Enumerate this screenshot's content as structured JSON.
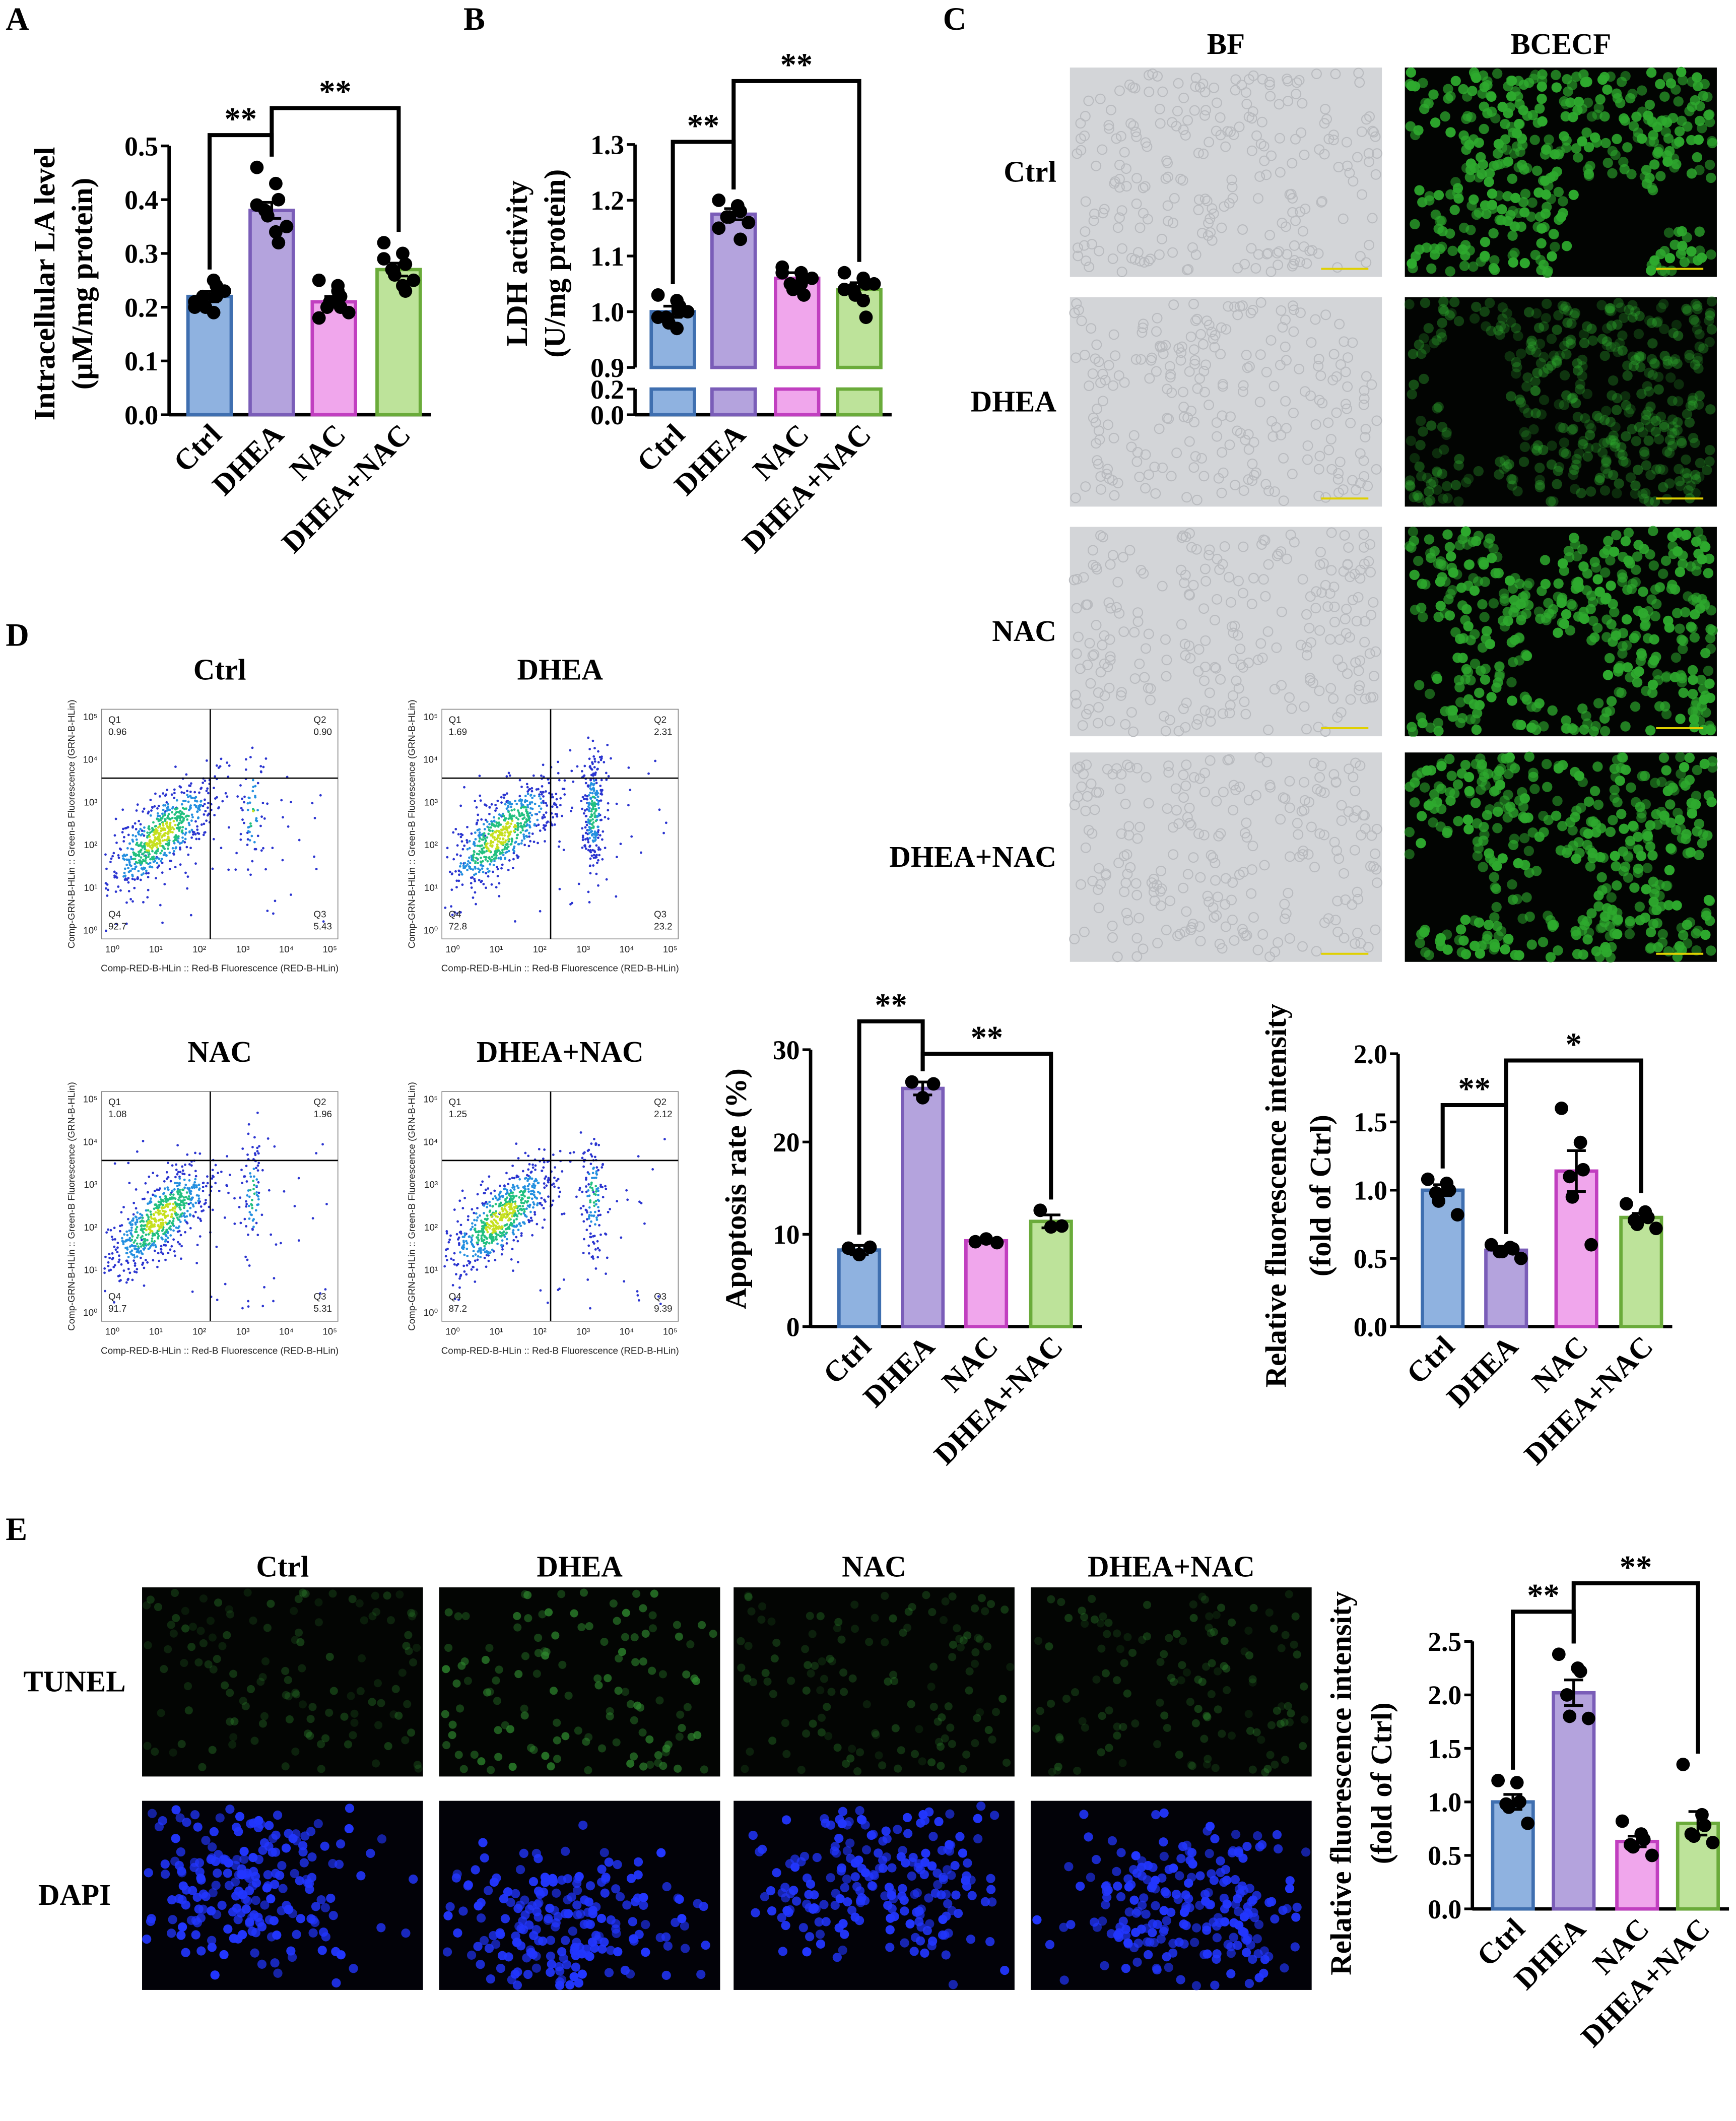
{
  "panels": [
    "A",
    "B",
    "C",
    "D",
    "E"
  ],
  "images": {
    "C": {
      "columns": [
        "BF",
        "BCECF"
      ],
      "rows": [
        "Ctrl",
        "DHEA",
        "NAC",
        "DHEA+NAC"
      ]
    },
    "E": {
      "columns": [
        "Ctrl",
        "DHEA",
        "NAC",
        "DHEA+NAC"
      ],
      "rows": [
        "TUNEL",
        "DAPI"
      ]
    }
  },
  "flow_axes": {
    "ticks": [
      "10⁰",
      "10¹",
      "10²",
      "10³",
      "10⁴",
      "10⁵"
    ],
    "xlabel": "Comp-RED-B-HLin :: Red-B Fluorescence (RED-B-HLin)",
    "ylabel": "Comp-GRN-B-HLin :: Green-B Fluorescence (GRN-B-HLin)"
  },
  "flow_plots": [
    {
      "title": "Ctrl",
      "quadrants": [
        {
          "name": "Q1",
          "value": "0.96"
        },
        {
          "name": "Q2",
          "value": "0.90"
        },
        {
          "name": "Q3",
          "value": "5.43"
        },
        {
          "name": "Q4",
          "value": "92.7"
        }
      ]
    },
    {
      "title": "DHEA",
      "quadrants": [
        {
          "name": "Q1",
          "value": "1.69"
        },
        {
          "name": "Q2",
          "value": "2.31"
        },
        {
          "name": "Q3",
          "value": "23.2"
        },
        {
          "name": "Q4",
          "value": "72.8"
        }
      ]
    },
    {
      "title": "NAC",
      "quadrants": [
        {
          "name": "Q1",
          "value": "1.08"
        },
        {
          "name": "Q2",
          "value": "1.96"
        },
        {
          "name": "Q3",
          "value": "5.31"
        },
        {
          "name": "Q4",
          "value": "91.7"
        }
      ]
    },
    {
      "title": "DHEA+NAC",
      "quadrants": [
        {
          "name": "Q1",
          "value": "1.25"
        },
        {
          "name": "Q2",
          "value": "2.12"
        },
        {
          "name": "Q3",
          "value": "9.39"
        },
        {
          "name": "Q4",
          "value": "87.2"
        }
      ]
    }
  ],
  "chart_data": [
    {
      "type": "bar",
      "ylabel": [
        "Intracellular LA level",
        "(μM/mg protein)"
      ],
      "categories": [
        "Ctrl",
        "DHEA",
        "NAC",
        "DHEA+NAC"
      ],
      "values": [
        0.22,
        0.38,
        0.21,
        0.27
      ],
      "errors": [
        0.01,
        0.015,
        0.01,
        0.012
      ],
      "points": [
        [
          0.2,
          0.25,
          0.24,
          0.22,
          0.2,
          0.23,
          0.21,
          0.19,
          0.22
        ],
        [
          0.46,
          0.43,
          0.4,
          0.38,
          0.37,
          0.35,
          0.39,
          0.34,
          0.32
        ],
        [
          0.25,
          0.23,
          0.22,
          0.2,
          0.21,
          0.19,
          0.18,
          0.24,
          0.2
        ],
        [
          0.32,
          0.3,
          0.28,
          0.27,
          0.26,
          0.25,
          0.29,
          0.24,
          0.23
        ]
      ],
      "colors": [
        "#8fb2e0",
        "#b4a3dd",
        "#f0a6ec",
        "#bde39a"
      ],
      "edge_colors": [
        "#3f6fb0",
        "#7a5db8",
        "#c13fc0",
        "#6aab3a"
      ],
      "ylim": [
        0,
        0.5
      ],
      "yticks": [
        {
          "value": 0,
          "label": "0.0"
        },
        0.1,
        0.2,
        0.3,
        0.4,
        0.5
      ],
      "annotations": [
        {
          "text": "**",
          "between": [
            "Ctrl",
            "DHEA"
          ]
        },
        {
          "text": "**",
          "between": [
            "DHEA",
            "DHEA+NAC"
          ]
        }
      ]
    },
    {
      "type": "bar",
      "ylabel": [
        "LDH  activity",
        "(U/mg protein)"
      ],
      "categories": [
        "Ctrl",
        "DHEA",
        "NAC",
        "DHEA+NAC"
      ],
      "values": [
        1.0,
        1.175,
        1.06,
        1.04
      ],
      "errors": [
        0.01,
        0.01,
        0.01,
        0.012
      ],
      "points": [
        [
          1.03,
          1.02,
          1.0,
          0.99,
          0.98,
          1.0,
          0.99,
          0.97,
          1.01
        ],
        [
          1.2,
          1.19,
          1.18,
          1.17,
          1.17,
          1.16,
          1.15,
          1.19,
          1.13
        ],
        [
          1.08,
          1.07,
          1.06,
          1.05,
          1.04,
          1.06,
          1.07,
          1.05,
          1.03
        ],
        [
          1.07,
          1.06,
          1.05,
          1.04,
          1.03,
          1.05,
          1.04,
          1.02,
          0.99
        ]
      ],
      "colors": [
        "#8fb2e0",
        "#b4a3dd",
        "#f0a6ec",
        "#bde39a"
      ],
      "edge_colors": [
        "#3f6fb0",
        "#7a5db8",
        "#c13fc0",
        "#6aab3a"
      ],
      "ylim": [
        0.9,
        1.3
      ],
      "yticks": [
        0.9,
        {
          "value": 1,
          "label": "1.0"
        },
        1.1,
        1.2,
        1.3
      ],
      "break": {
        "ylim": [
          0,
          0.2
        ],
        "yticks": [
          {
            "value": 0,
            "label": "0.0"
          },
          0.2
        ]
      },
      "annotations": [
        {
          "text": "**",
          "between": [
            "Ctrl",
            "DHEA"
          ]
        },
        {
          "text": "**",
          "between": [
            "DHEA",
            "DHEA+NAC"
          ]
        }
      ]
    },
    {
      "type": "bar",
      "ylabel": [
        "Apoptosis rate (%)"
      ],
      "categories": [
        "Ctrl",
        "DHEA",
        "NAC",
        "DHEA+NAC"
      ],
      "values": [
        8.3,
        25.8,
        9.3,
        11.4
      ],
      "errors": [
        0.5,
        0.7,
        0.2,
        0.7
      ],
      "points": [
        [
          8.5,
          7.8,
          8.6
        ],
        [
          26.5,
          24.8,
          26.3
        ],
        [
          9.2,
          9.5,
          9.1
        ],
        [
          12.6,
          10.8,
          10.9
        ]
      ],
      "colors": [
        "#8fb2e0",
        "#b4a3dd",
        "#f0a6ec",
        "#bde39a"
      ],
      "edge_colors": [
        "#3f6fb0",
        "#7a5db8",
        "#c13fc0",
        "#6aab3a"
      ],
      "ylim": [
        0,
        30
      ],
      "yticks": [
        0,
        10,
        20,
        30
      ],
      "annotations": [
        {
          "text": "**",
          "between": [
            "Ctrl",
            "DHEA"
          ]
        },
        {
          "text": "**",
          "between": [
            "DHEA",
            "DHEA+NAC"
          ]
        }
      ]
    },
    {
      "type": "bar",
      "ylabel": [
        "Relative fluorescence intensity",
        "(fold of Ctrl)"
      ],
      "categories": [
        "Ctrl",
        "DHEA",
        "NAC",
        "DHEA+NAC"
      ],
      "values": [
        1.0,
        0.56,
        1.14,
        0.8
      ],
      "errors": [
        0.04,
        0.02,
        0.15,
        0.03
      ],
      "points": [
        [
          1.08,
          1.05,
          1.0,
          0.98,
          0.92,
          0.82
        ],
        [
          0.6,
          0.58,
          0.57,
          0.55,
          0.55,
          0.5
        ],
        [
          1.6,
          1.35,
          1.15,
          1.1,
          0.95,
          0.6
        ],
        [
          0.9,
          0.84,
          0.8,
          0.78,
          0.75,
          0.72
        ]
      ],
      "colors": [
        "#8fb2e0",
        "#b4a3dd",
        "#f0a6ec",
        "#bde39a"
      ],
      "edge_colors": [
        "#3f6fb0",
        "#7a5db8",
        "#c13fc0",
        "#6aab3a"
      ],
      "ylim": [
        0,
        2
      ],
      "yticks": [
        {
          "value": 0,
          "label": "0.0"
        },
        0.5,
        {
          "value": 1,
          "label": "1.0"
        },
        1.5,
        {
          "value": 2,
          "label": "2.0"
        }
      ],
      "annotations": [
        {
          "text": "**",
          "between": [
            "Ctrl",
            "DHEA"
          ]
        },
        {
          "text": "*",
          "between": [
            "DHEA",
            "DHEA+NAC"
          ]
        }
      ]
    },
    {
      "type": "bar",
      "ylabel": [
        "Relative fluorescence intensity",
        "(fold of Ctrl)"
      ],
      "categories": [
        "Ctrl",
        "DHEA",
        "NAC",
        "DHEA+NAC"
      ],
      "values": [
        1.0,
        2.02,
        0.63,
        0.8
      ],
      "errors": [
        0.07,
        0.12,
        0.05,
        0.11
      ],
      "points": [
        [
          1.2,
          1.18,
          1.0,
          0.98,
          0.95,
          0.8
        ],
        [
          2.38,
          2.25,
          2.22,
          2.0,
          1.8,
          1.78
        ],
        [
          0.82,
          0.7,
          0.65,
          0.6,
          0.58,
          0.5
        ],
        [
          1.35,
          0.88,
          0.78,
          0.7,
          0.68,
          0.62
        ]
      ],
      "colors": [
        "#8fb2e0",
        "#b4a3dd",
        "#f0a6ec",
        "#bde39a"
      ],
      "edge_colors": [
        "#3f6fb0",
        "#7a5db8",
        "#c13fc0",
        "#6aab3a"
      ],
      "ylim": [
        0,
        2.5
      ],
      "yticks": [
        {
          "value": 0,
          "label": "0.0"
        },
        0.5,
        {
          "value": 1,
          "label": "1.0"
        },
        1.5,
        {
          "value": 2,
          "label": "2.0"
        },
        2.5
      ],
      "annotations": [
        {
          "text": "**",
          "between": [
            "Ctrl",
            "DHEA"
          ]
        },
        {
          "text": "**",
          "between": [
            "DHEA",
            "DHEA+NAC"
          ]
        }
      ]
    }
  ]
}
